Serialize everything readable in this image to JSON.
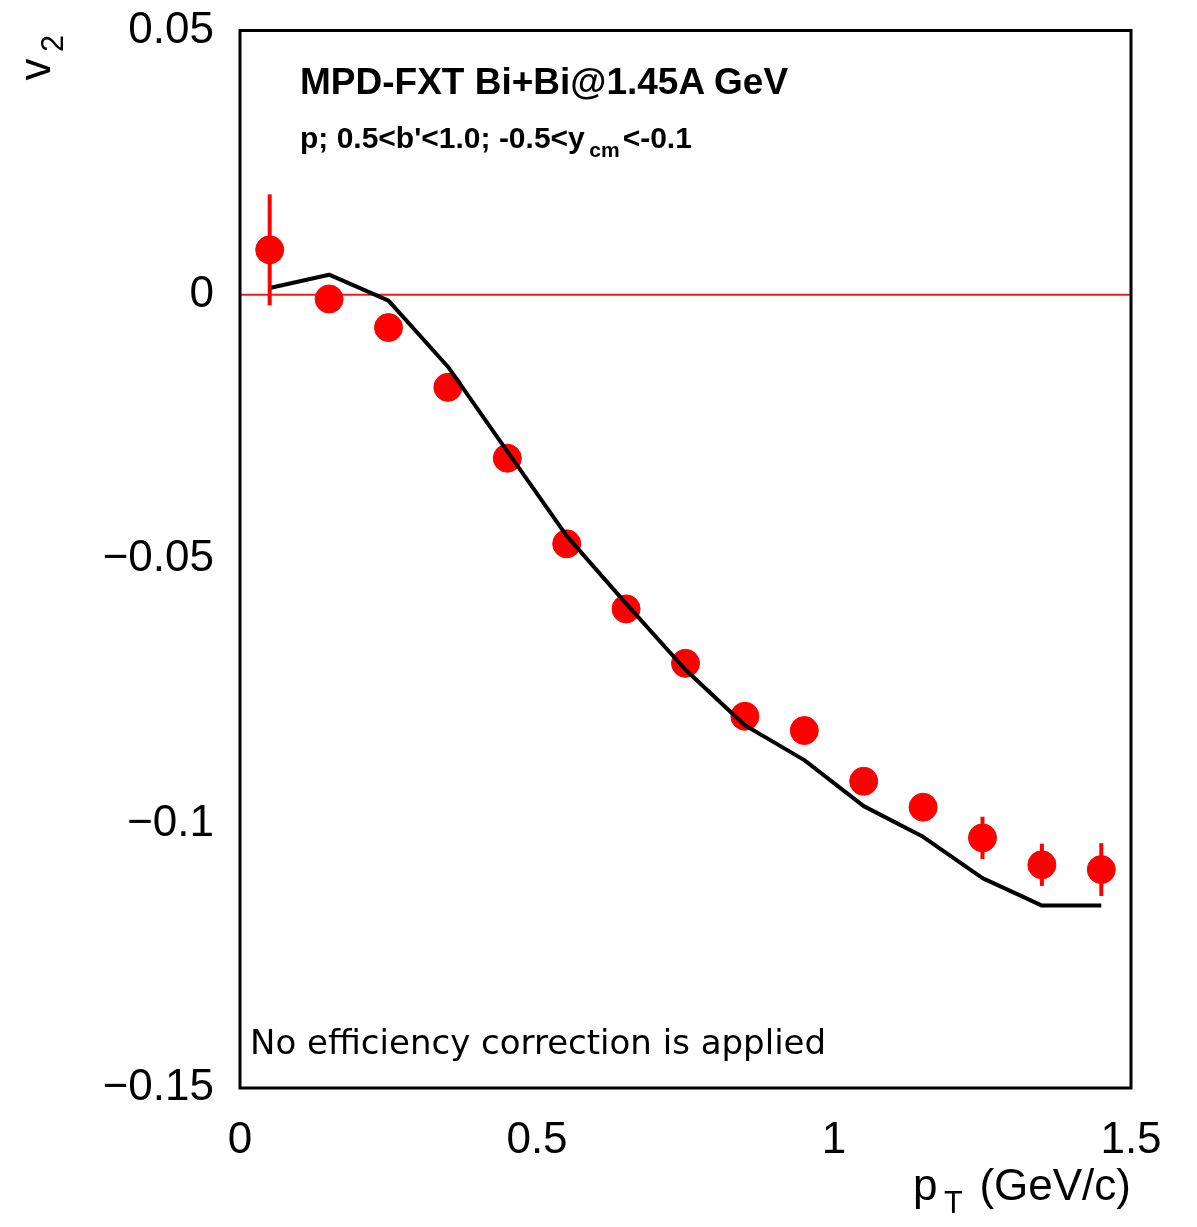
{
  "chart_data": {
    "type": "scatter",
    "title": "MPD-FXT Bi+Bi@1.45A GeV",
    "subtitle": "p; 0.5<b'<1.0; -0.5<y$_{cm}$<-0.1",
    "xlabel": "p$_{T}$ (GeV/c)",
    "ylabel": "v$_{2}$",
    "annotations": [
      "No efficiency correction is applied"
    ],
    "xlim": [
      0,
      1.5
    ],
    "xticks": [
      0,
      0.5,
      1,
      1.5
    ],
    "ylim": [
      -0.15,
      0.05
    ],
    "yticks": [
      {
        "value": -0.15,
        "label": "−0.15"
      },
      {
        "value": -0.1,
        "label": "−0.1"
      },
      {
        "value": -0.05,
        "label": "−0.05"
      },
      0,
      0.05
    ],
    "grid": false,
    "legend": false,
    "marker": "circle",
    "ref_lines": [
      {
        "axis": "y",
        "value": 0,
        "color": "#e8201c"
      }
    ],
    "series": [
      {
        "color": "#ff0000",
        "x": [
          0.05,
          0.15,
          0.25,
          0.35,
          0.45,
          0.55,
          0.65,
          0.75,
          0.85,
          0.95,
          1.05,
          1.15,
          1.25,
          1.35,
          1.45
        ],
        "values": [
          0.0085,
          -0.0008,
          -0.0062,
          -0.0175,
          -0.0309,
          -0.0471,
          -0.0594,
          -0.0697,
          -0.0797,
          -0.0824,
          -0.092,
          -0.0969,
          -0.1027,
          -0.1078,
          -0.1087
        ],
        "errors": [
          0.0105,
          null,
          null,
          null,
          null,
          null,
          null,
          null,
          null,
          null,
          null,
          null,
          0.004,
          0.004,
          0.005
        ]
      },
      {
        "type": "line",
        "color": "#000000",
        "marker": "none",
        "x": [
          0.05,
          0.15,
          0.25,
          0.35,
          0.45,
          0.55,
          0.65,
          0.75,
          0.85,
          0.95,
          1.05,
          1.15,
          1.25,
          1.35,
          1.45
        ],
        "values": [
          0.0013,
          0.0038,
          -0.0011,
          -0.0136,
          -0.0296,
          -0.0456,
          -0.0584,
          -0.0709,
          -0.0814,
          -0.088,
          -0.0967,
          -0.1025,
          -0.1103,
          -0.1155,
          -0.1155
        ]
      }
    ]
  }
}
